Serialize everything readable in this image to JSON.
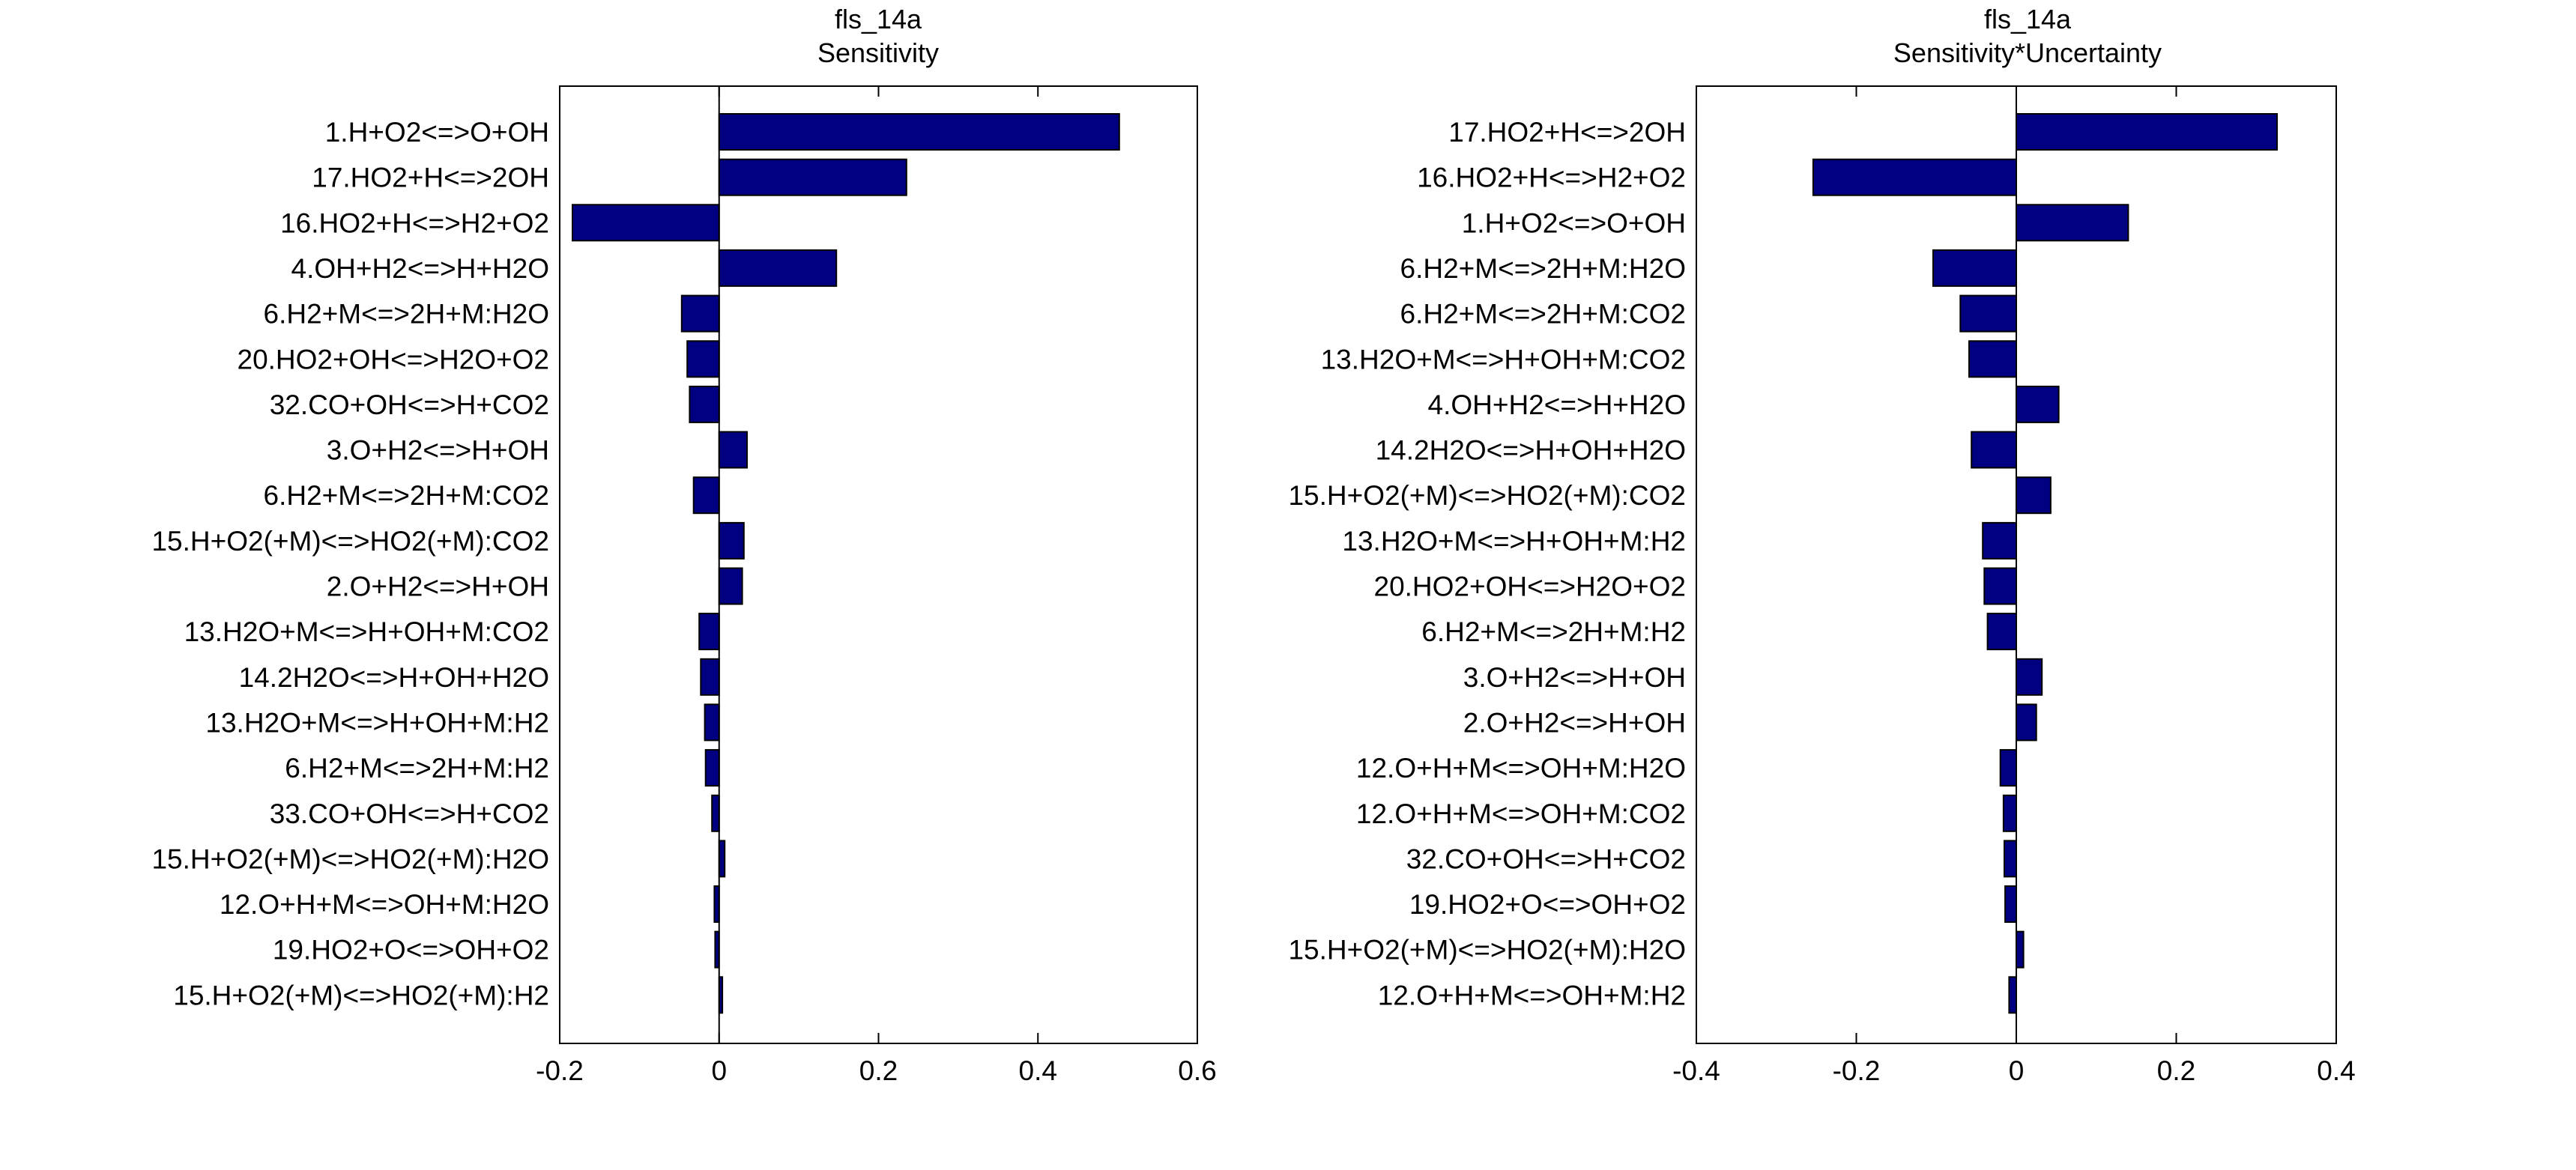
{
  "chart_data": [
    {
      "type": "bar",
      "orientation": "horizontal",
      "title": "fls_14a",
      "subtitle": "Sensitivity",
      "xlim": [
        -0.2,
        0.6
      ],
      "xticks": [
        -0.2,
        0,
        0.2,
        0.4,
        0.6
      ],
      "xtick_labels": [
        "-0.2",
        "0",
        "0.2",
        "0.4",
        "0.6"
      ],
      "bar_color": "#000080",
      "categories": [
        "1.H+O2<=>O+OH",
        "17.HO2+H<=>2OH",
        "16.HO2+H<=>H2+O2",
        "4.OH+H2<=>H+H2O",
        "6.H2+M<=>2H+M:H2O",
        "20.HO2+OH<=>H2O+O2",
        "32.CO+OH<=>H+CO2",
        "3.O+H2<=>H+OH",
        "6.H2+M<=>2H+M:CO2",
        "15.H+O2(+M)<=>HO2(+M):CO2",
        "2.O+H2<=>H+OH",
        "13.H2O+M<=>H+OH+M:CO2",
        "14.2H2O<=>H+OH+H2O",
        "13.H2O+M<=>H+OH+M:H2",
        "6.H2+M<=>2H+M:H2",
        "33.CO+OH<=>H+CO2",
        "15.H+O2(+M)<=>HO2(+M):H2O",
        "12.O+H+M<=>OH+M:H2O",
        "19.HO2+O<=>OH+O2",
        "15.H+O2(+M)<=>HO2(+M):H2"
      ],
      "values": [
        0.502,
        0.235,
        -0.184,
        0.147,
        -0.047,
        -0.04,
        -0.037,
        0.035,
        -0.032,
        0.031,
        0.029,
        -0.025,
        -0.023,
        -0.018,
        -0.017,
        -0.009,
        0.007,
        -0.006,
        -0.005,
        0.004
      ]
    },
    {
      "type": "bar",
      "orientation": "horizontal",
      "title": "fls_14a",
      "subtitle": "Sensitivity*Uncertainty",
      "xlim": [
        -0.4,
        0.4
      ],
      "xticks": [
        -0.4,
        -0.2,
        0,
        0.2,
        0.4
      ],
      "xtick_labels": [
        "-0.4",
        "-0.2",
        "0",
        "0.2",
        "0.4"
      ],
      "bar_color": "#000080",
      "categories": [
        "17.HO2+H<=>2OH",
        "16.HO2+H<=>H2+O2",
        "1.H+O2<=>O+OH",
        "6.H2+M<=>2H+M:H2O",
        "6.H2+M<=>2H+M:CO2",
        "13.H2O+M<=>H+OH+M:CO2",
        "4.OH+H2<=>H+H2O",
        "14.2H2O<=>H+OH+H2O",
        "15.H+O2(+M)<=>HO2(+M):CO2",
        "13.H2O+M<=>H+OH+M:H2",
        "20.HO2+OH<=>H2O+O2",
        "6.H2+M<=>2H+M:H2",
        "3.O+H2<=>H+OH",
        "2.O+H2<=>H+OH",
        "12.O+H+M<=>OH+M:H2O",
        "12.O+H+M<=>OH+M:CO2",
        "32.CO+OH<=>H+CO2",
        "19.HO2+O<=>OH+O2",
        "15.H+O2(+M)<=>HO2(+M):H2O",
        "12.O+H+M<=>OH+M:H2"
      ],
      "values": [
        0.326,
        -0.254,
        0.14,
        -0.104,
        -0.07,
        -0.059,
        0.053,
        -0.056,
        0.043,
        -0.042,
        -0.04,
        -0.036,
        0.032,
        0.025,
        -0.02,
        -0.016,
        -0.015,
        -0.014,
        0.009,
        -0.009
      ]
    }
  ]
}
